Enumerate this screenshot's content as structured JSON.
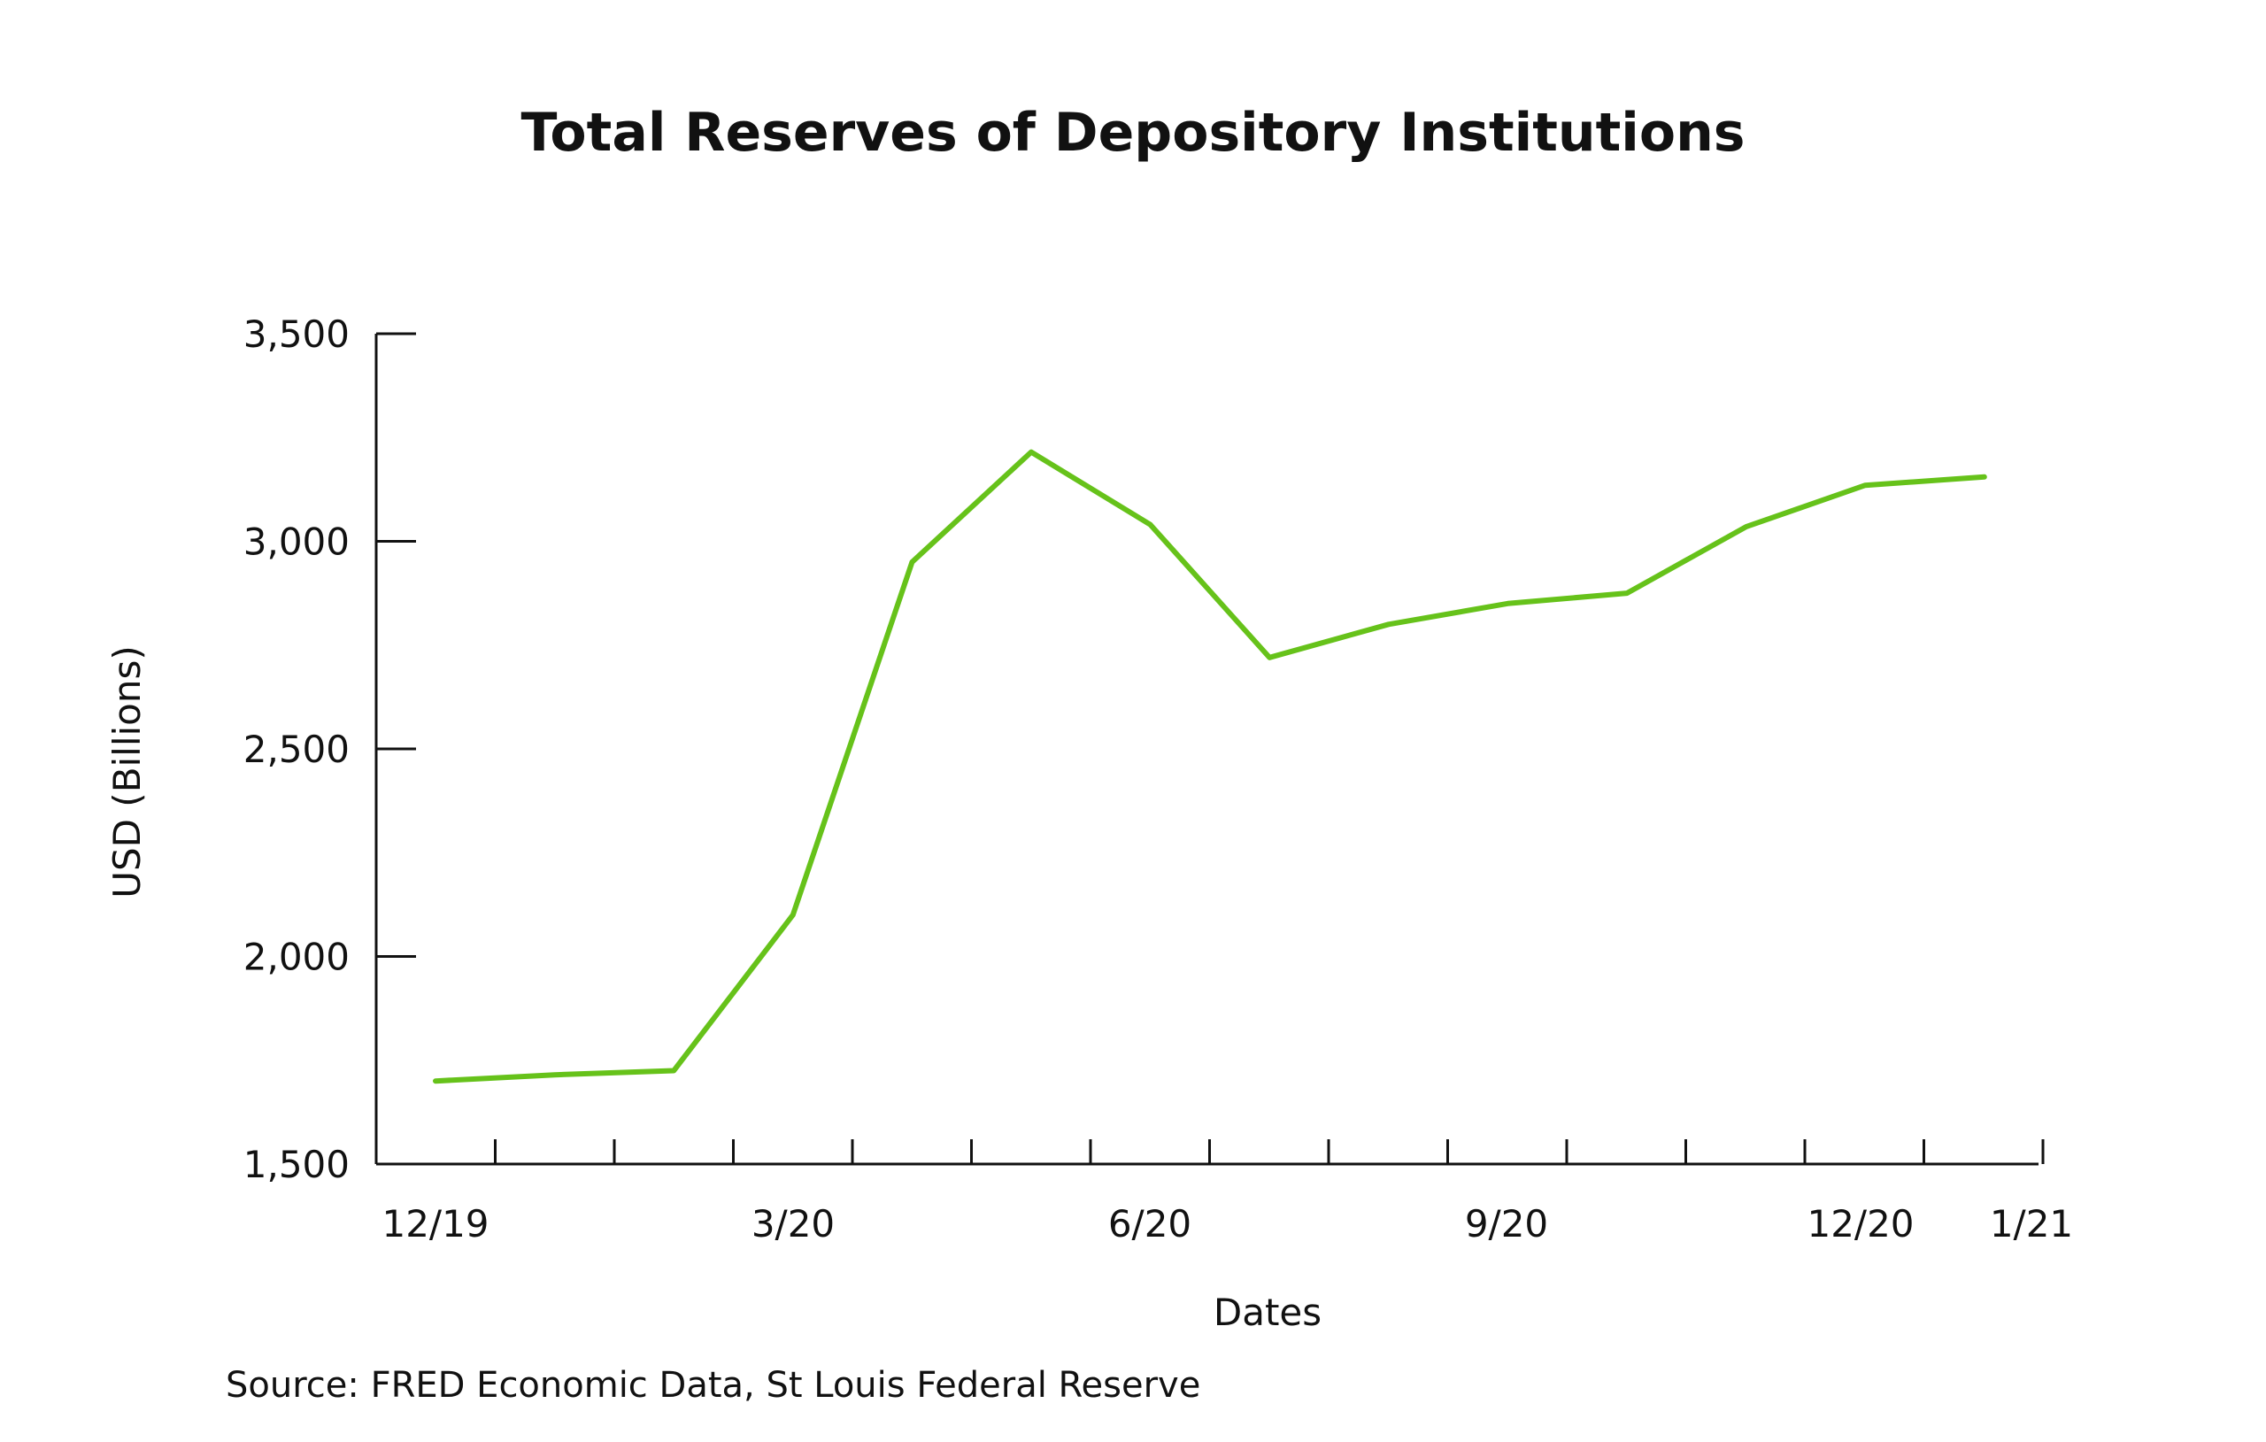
{
  "chart_data": {
    "type": "line",
    "title": "Total Reserves of Depository Institutions",
    "xlabel": "Dates",
    "ylabel": "USD (Billions)",
    "source": "Source: FRED Economic Data, St Louis Federal Reserve",
    "ylim": [
      1500,
      3500
    ],
    "yticks": [
      "1,500",
      "2,000",
      "2,500",
      "3,000",
      "3,500"
    ],
    "ytick_values": [
      1500,
      2000,
      2500,
      3000,
      3500
    ],
    "xtick_labels": [
      "12/19",
      "3/20",
      "6/20",
      "9/20",
      "12/20",
      "1/21"
    ],
    "grid": false,
    "colors": {
      "line": "#66C21A",
      "axis": "#111111"
    },
    "series": [
      {
        "values": [
          1700,
          1715,
          1725,
          2100,
          2950,
          3215,
          3040,
          2720,
          2800,
          2850,
          2875,
          3035,
          3135,
          3155
        ]
      }
    ]
  }
}
